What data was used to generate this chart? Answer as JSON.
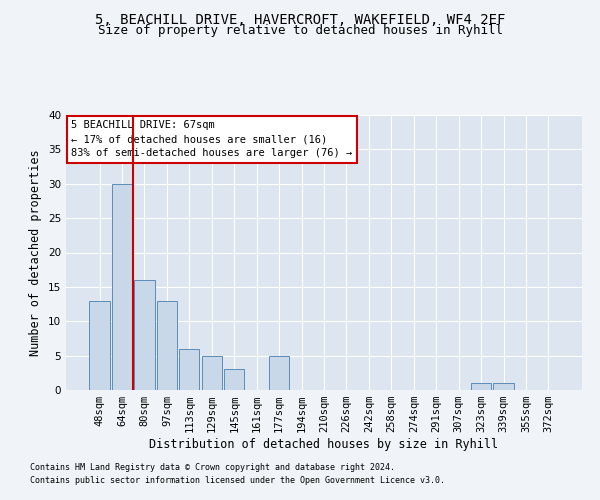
{
  "title1": "5, BEACHILL DRIVE, HAVERCROFT, WAKEFIELD, WF4 2EF",
  "title2": "Size of property relative to detached houses in Ryhill",
  "xlabel": "Distribution of detached houses by size in Ryhill",
  "ylabel": "Number of detached properties",
  "categories": [
    "48sqm",
    "64sqm",
    "80sqm",
    "97sqm",
    "113sqm",
    "129sqm",
    "145sqm",
    "161sqm",
    "177sqm",
    "194sqm",
    "210sqm",
    "226sqm",
    "242sqm",
    "258sqm",
    "274sqm",
    "291sqm",
    "307sqm",
    "323sqm",
    "339sqm",
    "355sqm",
    "372sqm"
  ],
  "values": [
    13,
    30,
    16,
    13,
    6,
    5,
    3,
    0,
    5,
    0,
    0,
    0,
    0,
    0,
    0,
    0,
    0,
    1,
    1,
    0,
    0
  ],
  "bar_color": "#c8d8e8",
  "bar_edge_color": "#5b8db8",
  "redline_index": 1.5,
  "annotation_lines": [
    "5 BEACHILL DRIVE: 67sqm",
    "← 17% of detached houses are smaller (16)",
    "83% of semi-detached houses are larger (76) →"
  ],
  "annotation_box_color": "#ffffff",
  "annotation_box_edge": "#cc0000",
  "redline_color": "#cc0000",
  "ylim": [
    0,
    40
  ],
  "yticks": [
    0,
    5,
    10,
    15,
    20,
    25,
    30,
    35,
    40
  ],
  "footer1": "Contains HM Land Registry data © Crown copyright and database right 2024.",
  "footer2": "Contains public sector information licensed under the Open Government Licence v3.0.",
  "bg_color": "#f0f4f8",
  "plot_bg_color": "#dde6f0",
  "grid_color": "#ffffff",
  "title1_fontsize": 10,
  "title2_fontsize": 9,
  "xlabel_fontsize": 8.5,
  "ylabel_fontsize": 8.5,
  "tick_fontsize": 7.5,
  "annotation_fontsize": 7.5,
  "footer_fontsize": 6
}
